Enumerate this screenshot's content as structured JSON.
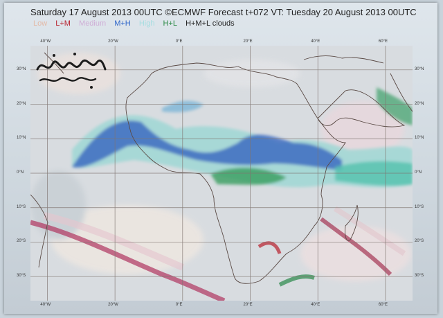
{
  "title": "Saturday 17 August 2013 00UTC ©ECMWF Forecast t+072 VT: Tuesday 20 August 2013 00UTC",
  "legend": [
    {
      "label": "Low",
      "color": "#e3b9a7"
    },
    {
      "label": "L+M",
      "color": "#b8232f"
    },
    {
      "label": "Medium",
      "color": "#cfaed6"
    },
    {
      "label": "M+H",
      "color": "#2f66c9"
    },
    {
      "label": "High",
      "color": "#a6dde0"
    },
    {
      "label": "H+L",
      "color": "#2c8a46"
    },
    {
      "label": "H+M+L clouds",
      "color": "#222222"
    }
  ],
  "map": {
    "lon_range": [
      -45,
      68
    ],
    "lat_range": [
      -37,
      37
    ],
    "lon_ticks": [
      {
        "value": -40,
        "label": "40°W"
      },
      {
        "value": -20,
        "label": "20°W"
      },
      {
        "value": 0,
        "label": "0°E"
      },
      {
        "value": 20,
        "label": "20°E"
      },
      {
        "value": 40,
        "label": "40°E"
      },
      {
        "value": 60,
        "label": "60°E"
      }
    ],
    "lat_ticks": [
      {
        "value": 30,
        "label": "30°N"
      },
      {
        "value": 20,
        "label": "20°N"
      },
      {
        "value": 10,
        "label": "10°N"
      },
      {
        "value": 0,
        "label": "0°N"
      },
      {
        "value": -10,
        "label": "10°S"
      },
      {
        "value": -20,
        "label": "20°S"
      },
      {
        "value": -30,
        "label": "30°S"
      }
    ],
    "colors": {
      "background": "#d6dbe0",
      "grid": "#7f7570",
      "coast": "#5a4a45"
    }
  },
  "watermark": {
    "text": "عبد الرحمن"
  }
}
